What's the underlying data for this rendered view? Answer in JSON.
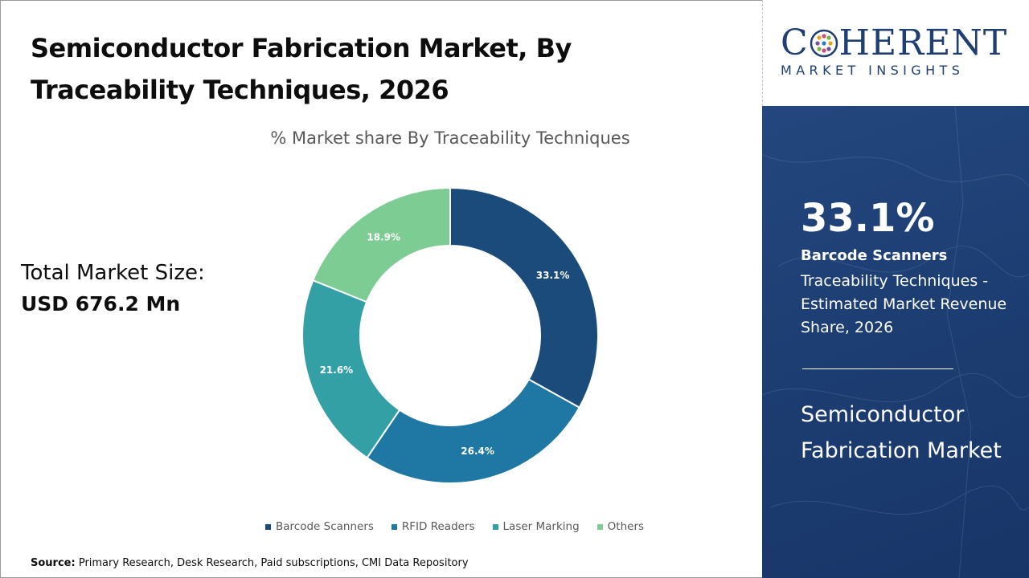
{
  "title": "Semiconductor Fabrication Market, By Traceability Techniques, 2026",
  "total_market": {
    "label": "Total Market Size:",
    "value": "USD 676.2 Mn"
  },
  "source": {
    "label": "Source:",
    "text": "Primary Research, Desk Research, Paid subscriptions, CMI Data Repository"
  },
  "logo": {
    "name_before": "C",
    "name_after": "HERENT",
    "tagline": "MARKET INSIGHTS",
    "color": "#1f3f73"
  },
  "highlight": {
    "percent": "33.1%",
    "segment": "Barcode Scanners",
    "description": "Traceability Techniques - Estimated Market Revenue Share, 2026",
    "market_name": "Semiconductor Fabrication Market",
    "background_color": "#1f3f73"
  },
  "chart_data": {
    "type": "pie",
    "variant": "donut",
    "title": "% Market share By Traceability Techniques",
    "categories": [
      "Barcode Scanners",
      "RFID Readers",
      "Laser Marking",
      "Others"
    ],
    "values": [
      33.1,
      26.4,
      21.6,
      18.9
    ],
    "labels": [
      "33.1%",
      "26.4%",
      "21.6%",
      "18.9%"
    ],
    "colors": [
      "#1b4b7a",
      "#1f77a4",
      "#33a0a6",
      "#7dcc93"
    ],
    "legend_position": "bottom"
  }
}
